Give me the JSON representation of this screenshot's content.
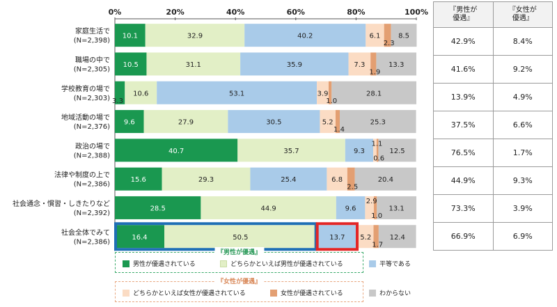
{
  "chart_data": {
    "type": "bar",
    "orientation": "horizontal-stacked-100",
    "x_ticks": [
      "0%",
      "20%",
      "40%",
      "60%",
      "80%",
      "100%"
    ],
    "xlim": [
      0,
      100
    ],
    "categories": [
      {
        "name": "家庭生活で",
        "n": "(N=2,398)"
      },
      {
        "name": "職場の中で",
        "n": "(N=2,305)"
      },
      {
        "name": "学校教育の場で",
        "n": "(N=2,303)"
      },
      {
        "name": "地域活動の場で",
        "n": "(N=2,376)"
      },
      {
        "name": "政治の場で",
        "n": "(N=2,388)"
      },
      {
        "name": "法律や制度の上で",
        "n": "(N=2,386)"
      },
      {
        "name": "社会通念・慣習・しきたりなど",
        "n": "(N=2,392)"
      },
      {
        "name": "社会全体でみて",
        "n": "(N=2,386)"
      }
    ],
    "series": [
      {
        "name": "男性が優遇されている",
        "color": "#1a9850",
        "values": [
          10.1,
          10.5,
          3.3,
          9.6,
          40.7,
          15.6,
          28.5,
          16.4
        ]
      },
      {
        "name": "どちらかといえば男性が優遇されている",
        "color": "#e2efc6",
        "values": [
          32.9,
          31.1,
          10.6,
          27.9,
          35.7,
          29.3,
          44.9,
          50.5
        ]
      },
      {
        "name": "平等である",
        "color": "#a9cbe9",
        "values": [
          40.2,
          35.9,
          53.1,
          30.5,
          9.3,
          25.4,
          9.6,
          13.7
        ]
      },
      {
        "name": "どちらかといえば女性が優遇されている",
        "color": "#fbdcc4",
        "values": [
          6.1,
          7.3,
          3.9,
          5.2,
          1.1,
          6.8,
          2.9,
          5.2
        ]
      },
      {
        "name": "女性が優遇されている",
        "color": "#e39f72",
        "values": [
          2.3,
          1.9,
          1.0,
          1.4,
          0.6,
          2.5,
          1.0,
          1.7
        ]
      },
      {
        "name": "わからない",
        "color": "#c8c8c8",
        "values": [
          8.5,
          13.3,
          28.1,
          25.3,
          12.5,
          20.4,
          13.1,
          12.4
        ]
      }
    ],
    "highlight": {
      "category_index": 7,
      "series_boxes": [
        [
          0,
          1
        ],
        [
          2,
          2
        ]
      ],
      "colors": [
        "#1f6fb5",
        "#e32626"
      ]
    }
  },
  "side_table": {
    "headers": [
      "『男性が\n優遇』",
      "『女性が\n優遇』"
    ],
    "rows": [
      [
        "42.9%",
        "8.4%"
      ],
      [
        "41.6%",
        "9.2%"
      ],
      [
        "13.9%",
        "4.9%"
      ],
      [
        "37.5%",
        "6.6%"
      ],
      [
        "76.5%",
        "1.7%"
      ],
      [
        "44.9%",
        "9.3%"
      ],
      [
        "73.3%",
        "3.9%"
      ],
      [
        "66.9%",
        "6.9%"
      ]
    ]
  },
  "legend": {
    "male_group_title": "『男性が優遇』",
    "female_group_title": "『女性が優遇』",
    "male_items": [
      "男性が優遇されている",
      "どちらかといえば男性が優遇されている"
    ],
    "equal_item": "平等である",
    "female_items": [
      "どちらかといえば女性が優遇されている",
      "女性が優遇されている"
    ],
    "unknown_item": "わからない"
  }
}
